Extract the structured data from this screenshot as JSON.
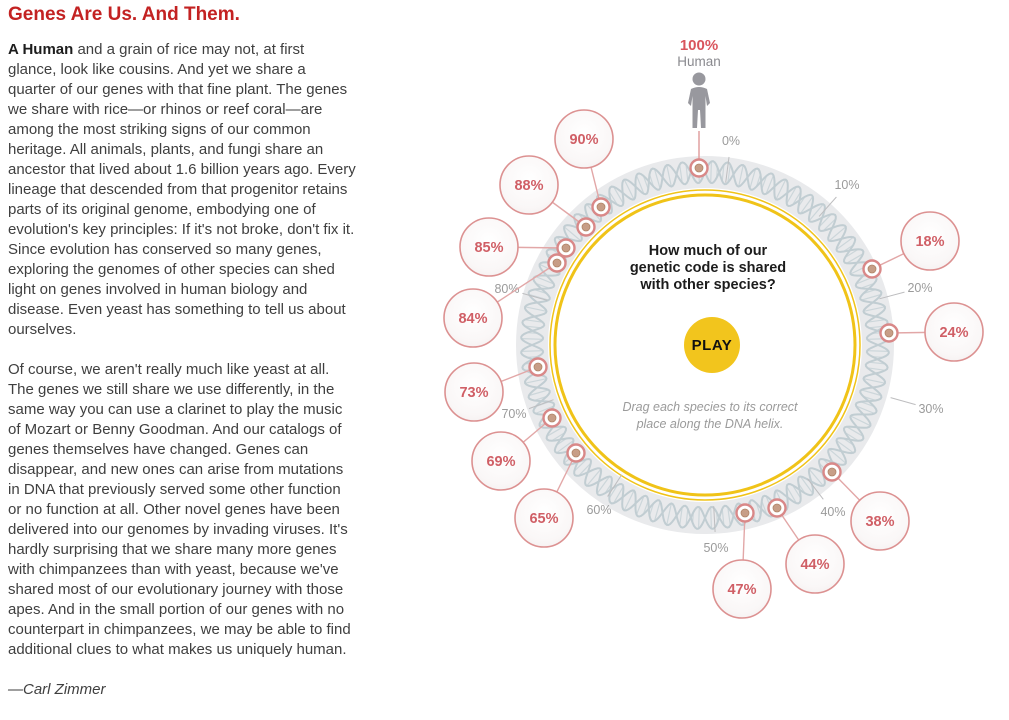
{
  "article": {
    "title": "Genes Are Us. And Them.",
    "para1_lead": "A Human",
    "para1_rest": " and a grain of rice may not, at first glance, look like cousins. And yet we share a quarter of our genes with that fine plant. The genes we share with rice—or rhinos or reef coral—are among the most striking signs of our common heritage. All animals, plants, and fungi share an ancestor that lived about 1.6 billion years ago. Every lineage that descended from that progenitor retains parts of its original genome, embodying one of evolution's key principles: If it's not broke, don't fix it. Since evolution has conserved so many genes, exploring the genomes of other species can shed light on genes involved in human biology and disease. Even yeast has something to tell us about ourselves.",
    "para2": "Of course, we aren't really much like yeast at all. The genes we still share we use differently, in the same way you can use a clarinet to play the music of Mozart or Benny Goodman. And our catalogs of genes themselves have changed. Genes can disappear, and new ones can arise from mutations in DNA that previously served some other function or no function at all. Other novel genes have been delivered into our genomes by invading viruses. It's hardly surprising that we share many more genes with chimpanzees than with yeast, because we've shared most of our evolutionary journey with those apes. And in the small portion of our genes with no counterpart in chimpanzees, we may be able to find additional clues to what makes us uniquely human.",
    "byline": "—Carl Zimmer"
  },
  "diagram": {
    "question": "How much of our\ngenetic code is shared\nwith other species?",
    "play_label": "PLAY",
    "instruction": "Drag each species to its correct\nplace along the DNA helix.",
    "human": {
      "pct_label": "100%",
      "name": "Human",
      "value": 100
    },
    "axis_ticks": [
      "0%",
      "10%",
      "20%",
      "30%",
      "40%",
      "50%",
      "60%",
      "70%",
      "80%"
    ],
    "species": [
      {
        "value": 18,
        "label": "18%"
      },
      {
        "value": 24,
        "label": "24%"
      },
      {
        "value": 38,
        "label": "38%"
      },
      {
        "value": 44,
        "label": "44%"
      },
      {
        "value": 47,
        "label": "47%"
      },
      {
        "value": 65,
        "label": "65%"
      },
      {
        "value": 69,
        "label": "69%"
      },
      {
        "value": 73,
        "label": "73%"
      },
      {
        "value": 84,
        "label": "84%"
      },
      {
        "value": 85,
        "label": "85%"
      },
      {
        "value": 88,
        "label": "88%"
      },
      {
        "value": 90,
        "label": "90%"
      }
    ],
    "colors": {
      "accent_red": "#c32222",
      "pct_red": "#d9545c",
      "bubble_border": "#dc9191",
      "bubble_text": "#d05f66",
      "connector": "#e2a7a7",
      "marker_ring": "#d98888",
      "marker_fill": "#c79e87",
      "yellow": "#f2c51d",
      "yellow_ring": "#f0c318",
      "band_gray": "#e9eaec",
      "helix_blue": "#c1cdd2",
      "rung_blue": "#ccd6da",
      "tick_gray": "#9b9b9b",
      "human_gray": "#98989e"
    }
  }
}
